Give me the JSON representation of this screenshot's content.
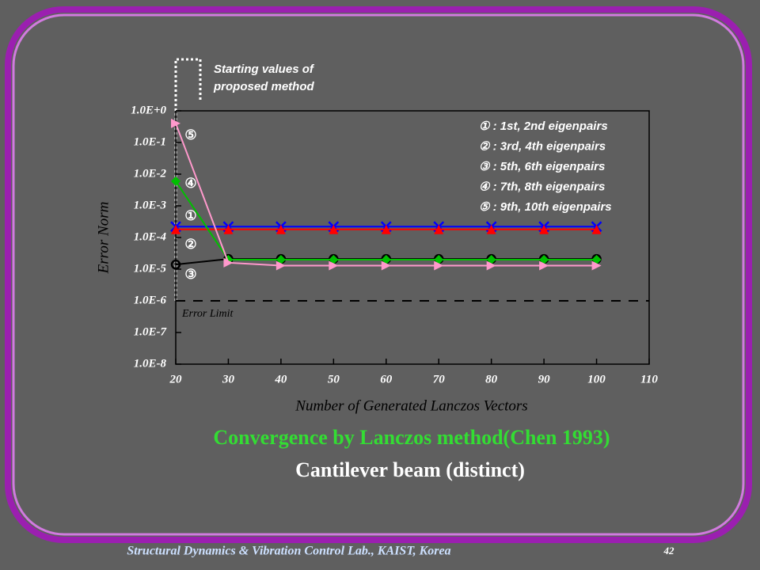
{
  "chart_data": {
    "type": "line",
    "title": "Convergence by Lanczos method(Chen 1993)",
    "subtitle": "Cantilever beam (distinct)",
    "xlabel": "Number of Generated Lanczos Vectors",
    "ylabel": "Error Norm",
    "x": [
      20,
      30,
      40,
      50,
      60,
      70,
      80,
      90,
      100
    ],
    "xlim": [
      20,
      110
    ],
    "xticks": [
      20,
      30,
      40,
      50,
      60,
      70,
      80,
      90,
      100,
      110
    ],
    "ylim": [
      1e-08,
      1
    ],
    "ylog": true,
    "yticks": [
      {
        "value": 1,
        "label": "1.0E+0"
      },
      {
        "value": 0.1,
        "label": "1.0E-1"
      },
      {
        "value": 0.01,
        "label": "1.0E-2"
      },
      {
        "value": 0.001,
        "label": "1.0E-3"
      },
      {
        "value": 0.0001,
        "label": "1.0E-4"
      },
      {
        "value": 1e-05,
        "label": "1.0E-5"
      },
      {
        "value": 1e-06,
        "label": "1.0E-6"
      },
      {
        "value": 1e-07,
        "label": "1.0E-7"
      },
      {
        "value": 1e-08,
        "label": "1.0E-8"
      }
    ],
    "series": [
      {
        "name": "① : 1st, 2nd eigenpairs",
        "color": "#0000ff",
        "marker": "x",
        "values": [
          0.00022,
          0.00022,
          0.00022,
          0.00022,
          0.00022,
          0.00022,
          0.00022,
          0.00022,
          0.00022
        ]
      },
      {
        "name": "② : 3rd, 4th eigenpairs",
        "color": "#ff0000",
        "marker": "triangle-up",
        "values": [
          0.00018,
          0.00018,
          0.00018,
          0.00018,
          0.00018,
          0.00018,
          0.00018,
          0.00018,
          0.00018
        ]
      },
      {
        "name": "③ : 5th, 6th eigenpairs",
        "color": "#000000",
        "marker": "circle",
        "values": [
          1.4e-05,
          2.1e-05,
          2.1e-05,
          2.1e-05,
          2.1e-05,
          2.1e-05,
          2.1e-05,
          2.1e-05,
          2.1e-05
        ]
      },
      {
        "name": "④ : 7th, 8th eigenpairs",
        "color": "#00c000",
        "marker": "diamond",
        "values": [
          0.006,
          2e-05,
          2e-05,
          2e-05,
          2e-05,
          2e-05,
          2e-05,
          2e-05,
          2e-05
        ]
      },
      {
        "name": "⑤ : 9th, 10th eigenpairs",
        "color": "#ff99cc",
        "marker": "triangle-right",
        "values": [
          0.4,
          1.6e-05,
          1.3e-05,
          1.3e-05,
          1.3e-05,
          1.3e-05,
          1.3e-05,
          1.3e-05,
          1.3e-05
        ]
      }
    ],
    "hline": {
      "value": 1e-06,
      "label": "Error Limit"
    },
    "annotations": [
      "⑤",
      "④",
      "①",
      "②",
      "③"
    ],
    "note": "Starting values of proposed method"
  },
  "footer": {
    "text": "Structural Dynamics & Vibration Control Lab., KAIST, Korea",
    "page": "42"
  }
}
